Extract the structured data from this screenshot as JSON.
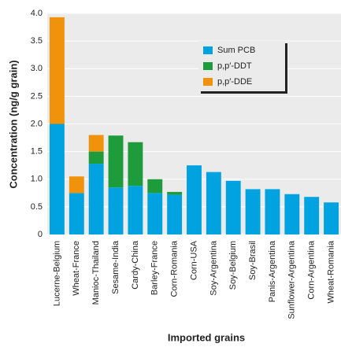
{
  "chart_data": {
    "type": "stacked-bar",
    "y_label": "Concentration (ng/g grain)",
    "x_label": "Imported grains",
    "categories": [
      "Lucerne-Belgium",
      "Wheat-France",
      "Manioc-Thailand",
      "Sesame-India",
      "Cardy-China",
      "Barley-France",
      "Corn-Romania",
      "Corn-USA",
      "Soy-Argentina",
      "Soy-Belgium",
      "Soy-Brasil",
      "Panis-Argentina",
      "Sunflower-Argentina",
      "Corn-Argentina",
      "Wheat-Romania"
    ],
    "series": [
      {
        "name": "Sum PCB",
        "color": "#00a3e0",
        "values": [
          2.0,
          0.75,
          1.28,
          0.85,
          0.88,
          0.75,
          0.72,
          1.25,
          1.13,
          0.97,
          0.82,
          0.82,
          0.73,
          0.68,
          0.58
        ]
      },
      {
        "name": "p,p′-DDT",
        "color": "#1e9c3c",
        "values": [
          0,
          0,
          0.22,
          0.94,
          0.79,
          0.25,
          0.05,
          0,
          0,
          0,
          0,
          0,
          0,
          0,
          0
        ]
      },
      {
        "name": "p,p′-DDE",
        "color": "#f0920c",
        "values": [
          1.93,
          0.3,
          0.3,
          0,
          0,
          0,
          0,
          0,
          0,
          0,
          0,
          0,
          0,
          0,
          0
        ]
      }
    ],
    "ylim": [
      0,
      4
    ],
    "yticks": [
      0,
      0.5,
      {
        "value": 1,
        "label": "1.0"
      },
      1.5,
      {
        "value": 2,
        "label": "2.0"
      },
      2.5,
      {
        "value": 3,
        "label": "3.0"
      },
      3.5,
      {
        "value": 4,
        "label": "4.0"
      }
    ],
    "grid": true
  }
}
